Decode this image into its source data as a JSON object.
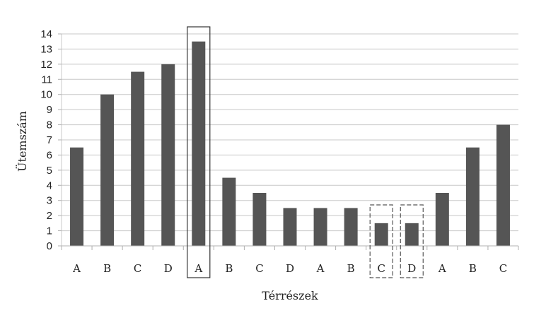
{
  "chart_data": {
    "type": "bar",
    "title": "",
    "xlabel": "Térrészek",
    "ylabel": "Ütemszám",
    "ylim": [
      0,
      14
    ],
    "yticks": [
      0,
      1,
      2,
      3,
      4,
      5,
      6,
      7,
      8,
      9,
      10,
      11,
      12,
      13,
      14
    ],
    "grid": true,
    "categories": [
      "A",
      "B",
      "C",
      "D",
      "A",
      "B",
      "C",
      "D",
      "A",
      "B",
      "C",
      "D",
      "A",
      "B",
      "C"
    ],
    "values": [
      6.5,
      10,
      11.5,
      12,
      13.5,
      4.5,
      3.5,
      2.5,
      2.5,
      2.5,
      1.5,
      1.5,
      3.5,
      6.5,
      8
    ],
    "bar_color": "#555555",
    "highlights": [
      {
        "index": 4,
        "style": "solid"
      },
      {
        "index": 10,
        "style": "dashed"
      },
      {
        "index": 11,
        "style": "dashed"
      }
    ]
  }
}
